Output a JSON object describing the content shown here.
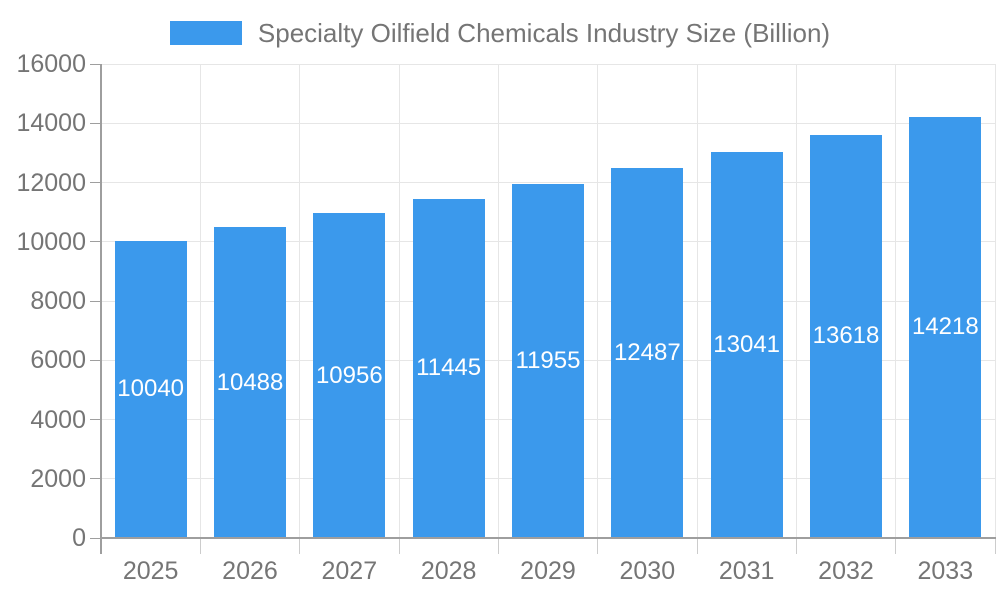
{
  "chart_data": {
    "type": "bar",
    "title": "Specialty Oilfield Chemicals Industry Size (Billion)",
    "legend_position": "top-center",
    "categories": [
      "2025",
      "2026",
      "2027",
      "2028",
      "2029",
      "2030",
      "2031",
      "2032",
      "2033"
    ],
    "series": [
      {
        "name": "Specialty Oilfield Chemicals Industry Size (Billion)",
        "values": [
          10040,
          10488,
          10956,
          11445,
          11955,
          12487,
          13041,
          13618,
          14218
        ]
      }
    ],
    "value_labels_shown": true,
    "xlabel": "",
    "ylabel": "",
    "ylim": [
      0,
      16000
    ],
    "yticks": [
      0,
      2000,
      4000,
      6000,
      8000,
      10000,
      12000,
      14000,
      16000
    ],
    "grid": true
  },
  "colors": {
    "bar": "#3B99EC",
    "grid": "#E6E6E6",
    "axis": "#9E9E9E",
    "minor_tick": "#CCCCCC",
    "label_text": "#757575",
    "value_label_text": "#FFFFFF",
    "background": "#FFFFFF"
  }
}
